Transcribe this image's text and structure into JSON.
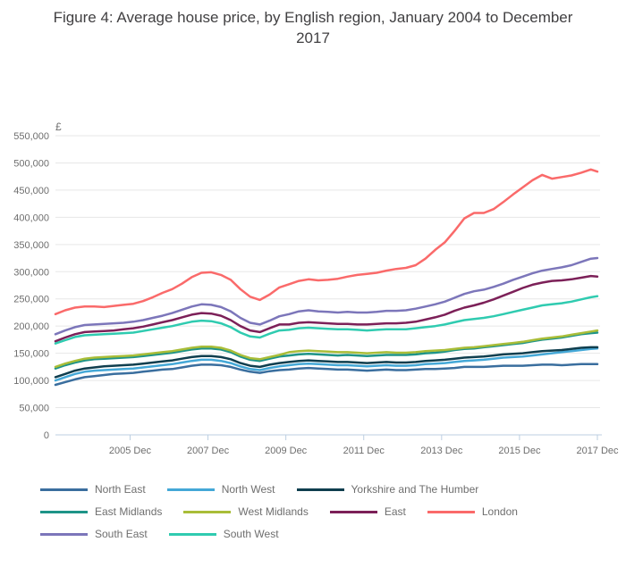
{
  "chart_data": {
    "type": "line",
    "title": "Figure 4: Average house price, by English region, January 2004 to December 2017",
    "title_color": "#414042",
    "grid_color": "#e7e7e7",
    "axis_color": "#bccfe2",
    "tick_label_color": "#6e6e6e",
    "yaxis": {
      "unit_label": "£",
      "min": 0,
      "max": 550000,
      "tick_step": 50000,
      "tick_labels": [
        "0",
        "50,000",
        "100,000",
        "150,000",
        "200,000",
        "250,000",
        "300,000",
        "350,000",
        "400,000",
        "450,000",
        "500,000",
        "550,000"
      ]
    },
    "xaxis": {
      "start_label": "January 2004",
      "end_label": "December 2017",
      "ticks": [
        {
          "label": "2005 Dec",
          "month": 23
        },
        {
          "label": "2007 Dec",
          "month": 47
        },
        {
          "label": "2009 Dec",
          "month": 71
        },
        {
          "label": "2011 Dec",
          "month": 95
        },
        {
          "label": "2013 Dec",
          "month": 119
        },
        {
          "label": "2015 Dec",
          "month": 143
        },
        {
          "label": "2017 Dec",
          "month": 167
        }
      ]
    },
    "x_months_since_jan_2004": [
      0,
      3,
      6,
      9,
      12,
      15,
      18,
      21,
      24,
      27,
      30,
      33,
      36,
      39,
      42,
      45,
      48,
      51,
      54,
      57,
      60,
      63,
      66,
      69,
      72,
      75,
      78,
      81,
      84,
      87,
      90,
      93,
      96,
      99,
      102,
      105,
      108,
      111,
      114,
      117,
      120,
      123,
      126,
      129,
      132,
      135,
      138,
      141,
      144,
      147,
      150,
      153,
      156,
      159,
      162,
      165,
      167
    ],
    "series": [
      {
        "name": "North East",
        "color": "#3a6e9e",
        "values": [
          92000,
          97000,
          102000,
          106000,
          108000,
          110000,
          112000,
          113000,
          114000,
          116000,
          118000,
          120000,
          121000,
          124000,
          127000,
          129000,
          129000,
          128000,
          125000,
          120000,
          116000,
          114000,
          117000,
          119000,
          120000,
          122000,
          123000,
          122000,
          121000,
          120000,
          120000,
          119000,
          118000,
          119000,
          120000,
          119000,
          119000,
          120000,
          121000,
          121000,
          122000,
          123000,
          125000,
          125000,
          125000,
          126000,
          127000,
          127000,
          127000,
          128000,
          129000,
          129000,
          128000,
          129000,
          130000,
          130000,
          130000
        ]
      },
      {
        "name": "North West",
        "color": "#44a8d7",
        "values": [
          100000,
          106000,
          112000,
          116000,
          118000,
          119000,
          120000,
          121000,
          122000,
          124000,
          126000,
          128000,
          130000,
          133000,
          136000,
          138000,
          138000,
          136000,
          132000,
          126000,
          121000,
          119000,
          123000,
          126000,
          128000,
          130000,
          131000,
          130000,
          129000,
          128000,
          128000,
          127000,
          126000,
          127000,
          128000,
          127000,
          127000,
          128000,
          130000,
          131000,
          132000,
          134000,
          136000,
          137000,
          138000,
          140000,
          142000,
          143000,
          144000,
          146000,
          148000,
          150000,
          152000,
          154000,
          156000,
          158000,
          159000
        ]
      },
      {
        "name": "Yorkshire and The Humber",
        "color": "#0f3e4e",
        "values": [
          106000,
          112000,
          118000,
          122000,
          124000,
          126000,
          127000,
          128000,
          129000,
          131000,
          133000,
          135000,
          137000,
          140000,
          143000,
          145000,
          145000,
          143000,
          139000,
          132000,
          127000,
          125000,
          129000,
          132000,
          134000,
          136000,
          137000,
          136000,
          135000,
          134000,
          134000,
          133000,
          132000,
          133000,
          134000,
          133000,
          133000,
          134000,
          136000,
          137000,
          138000,
          140000,
          142000,
          143000,
          144000,
          146000,
          148000,
          149000,
          150000,
          152000,
          154000,
          155000,
          156000,
          158000,
          160000,
          161000,
          161000
        ]
      },
      {
        "name": "East Midlands",
        "color": "#1e9488",
        "values": [
          122000,
          128000,
          133000,
          137000,
          139000,
          140000,
          141000,
          142000,
          143000,
          145000,
          147000,
          149000,
          151000,
          154000,
          157000,
          159000,
          159000,
          157000,
          152000,
          144000,
          138000,
          136000,
          140000,
          144000,
          146000,
          148000,
          149000,
          148000,
          147000,
          146000,
          147000,
          146000,
          145000,
          146000,
          147000,
          147000,
          147000,
          148000,
          150000,
          151000,
          153000,
          156000,
          158000,
          159000,
          161000,
          163000,
          165000,
          167000,
          169000,
          172000,
          175000,
          177000,
          179000,
          182000,
          185000,
          187000,
          188000
        ]
      },
      {
        "name": "West Midlands",
        "color": "#a9bd38",
        "values": [
          125000,
          131000,
          136000,
          140000,
          142000,
          143000,
          144000,
          145000,
          146000,
          148000,
          150000,
          152000,
          154000,
          157000,
          160000,
          162000,
          162000,
          160000,
          155000,
          147000,
          141000,
          139000,
          143000,
          147000,
          152000,
          154000,
          155000,
          154000,
          153000,
          152000,
          152000,
          151000,
          150000,
          151000,
          152000,
          151000,
          151000,
          152000,
          154000,
          155000,
          156000,
          158000,
          160000,
          161000,
          163000,
          165000,
          167000,
          169000,
          171000,
          174000,
          177000,
          179000,
          181000,
          184000,
          187000,
          190000,
          192000
        ]
      },
      {
        "name": "East",
        "color": "#7c2058",
        "values": [
          172000,
          179000,
          185000,
          189000,
          190000,
          191000,
          192000,
          194000,
          196000,
          199000,
          203000,
          207000,
          211000,
          216000,
          221000,
          224000,
          223000,
          219000,
          211000,
          200000,
          192000,
          189000,
          196000,
          203000,
          203000,
          206000,
          207000,
          206000,
          205000,
          204000,
          204000,
          203000,
          203000,
          204000,
          205000,
          205000,
          206000,
          208000,
          212000,
          216000,
          221000,
          228000,
          234000,
          238000,
          243000,
          249000,
          256000,
          263000,
          270000,
          276000,
          280000,
          283000,
          284000,
          286000,
          289000,
          292000,
          291000
        ]
      },
      {
        "name": "London",
        "color": "#fa6a6a",
        "values": [
          222000,
          229000,
          234000,
          236000,
          236000,
          235000,
          237000,
          239000,
          241000,
          246000,
          253000,
          261000,
          268000,
          278000,
          290000,
          298000,
          299000,
          294000,
          285000,
          268000,
          254000,
          248000,
          258000,
          271000,
          277000,
          283000,
          286000,
          284000,
          285000,
          287000,
          291000,
          294000,
          296000,
          298000,
          302000,
          305000,
          307000,
          312000,
          324000,
          340000,
          354000,
          375000,
          398000,
          408000,
          408000,
          415000,
          428000,
          442000,
          455000,
          468000,
          478000,
          471000,
          474000,
          477000,
          482000,
          488000,
          484000
        ]
      },
      {
        "name": "South East",
        "color": "#7c76ba",
        "values": [
          185000,
          192000,
          198000,
          202000,
          203000,
          204000,
          205000,
          206000,
          208000,
          211000,
          215000,
          219000,
          224000,
          230000,
          236000,
          240000,
          239000,
          235000,
          227000,
          215000,
          206000,
          203000,
          210000,
          218000,
          222000,
          227000,
          229000,
          227000,
          226000,
          225000,
          226000,
          225000,
          225000,
          226000,
          228000,
          228000,
          229000,
          232000,
          236000,
          240000,
          245000,
          252000,
          259000,
          264000,
          267000,
          272000,
          278000,
          285000,
          291000,
          297000,
          302000,
          305000,
          308000,
          312000,
          318000,
          324000,
          325000
        ]
      },
      {
        "name": "South West",
        "color": "#2fcbb0",
        "values": [
          168000,
          174000,
          180000,
          183000,
          184000,
          185000,
          186000,
          187000,
          188000,
          191000,
          194000,
          197000,
          200000,
          204000,
          208000,
          210000,
          209000,
          205000,
          198000,
          188000,
          181000,
          179000,
          186000,
          192000,
          193000,
          196000,
          197000,
          196000,
          195000,
          194000,
          194000,
          193000,
          192000,
          193000,
          194000,
          194000,
          194000,
          196000,
          198000,
          200000,
          203000,
          207000,
          211000,
          213000,
          215000,
          218000,
          222000,
          226000,
          230000,
          234000,
          238000,
          240000,
          242000,
          245000,
          249000,
          253000,
          255000
        ]
      }
    ]
  }
}
